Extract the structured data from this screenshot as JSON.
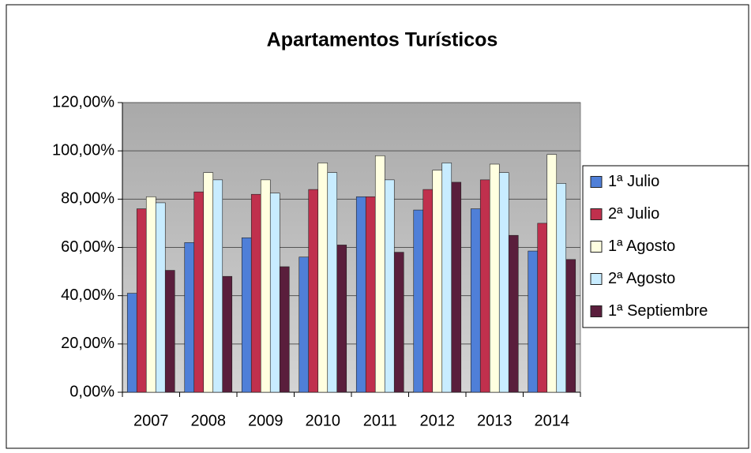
{
  "chart_data": {
    "type": "bar",
    "title": "Apartamentos Turísticos",
    "categories": [
      "2007",
      "2008",
      "2009",
      "2010",
      "2011",
      "2012",
      "2013",
      "2014"
    ],
    "series": [
      {
        "name": "1ª Julio",
        "color": "#4f7fd8",
        "values": [
          41,
          62,
          64,
          56,
          81,
          75.5,
          76,
          58.5
        ]
      },
      {
        "name": "2ª Julio",
        "color": "#c0304d",
        "values": [
          76,
          83,
          82,
          84,
          81,
          84,
          88,
          70
        ]
      },
      {
        "name": "1ª Agosto",
        "color": "#ffffe0",
        "values": [
          81,
          91,
          88,
          95,
          98,
          92,
          94.5,
          98.5
        ]
      },
      {
        "name": "2ª Agosto",
        "color": "#c8ecff",
        "values": [
          78.5,
          88,
          82.5,
          91,
          88,
          95,
          91,
          86.5
        ]
      },
      {
        "name": "1ª Septiembre",
        "color": "#5a1e3c",
        "values": [
          50.5,
          48,
          52,
          61,
          58,
          87,
          65,
          55
        ]
      }
    ],
    "ylim": [
      0,
      120
    ],
    "yticks": [
      {
        "value": 0,
        "label": "0,00%"
      },
      {
        "value": 20,
        "label": "20,00%"
      },
      {
        "value": 40,
        "label": "40,00%"
      },
      {
        "value": 60,
        "label": "60,00%"
      },
      {
        "value": 80,
        "label": "80,00%"
      },
      {
        "value": 100,
        "label": "100,00%"
      },
      {
        "value": 120,
        "label": "120,00%"
      }
    ],
    "grid": true,
    "legend": "right"
  }
}
